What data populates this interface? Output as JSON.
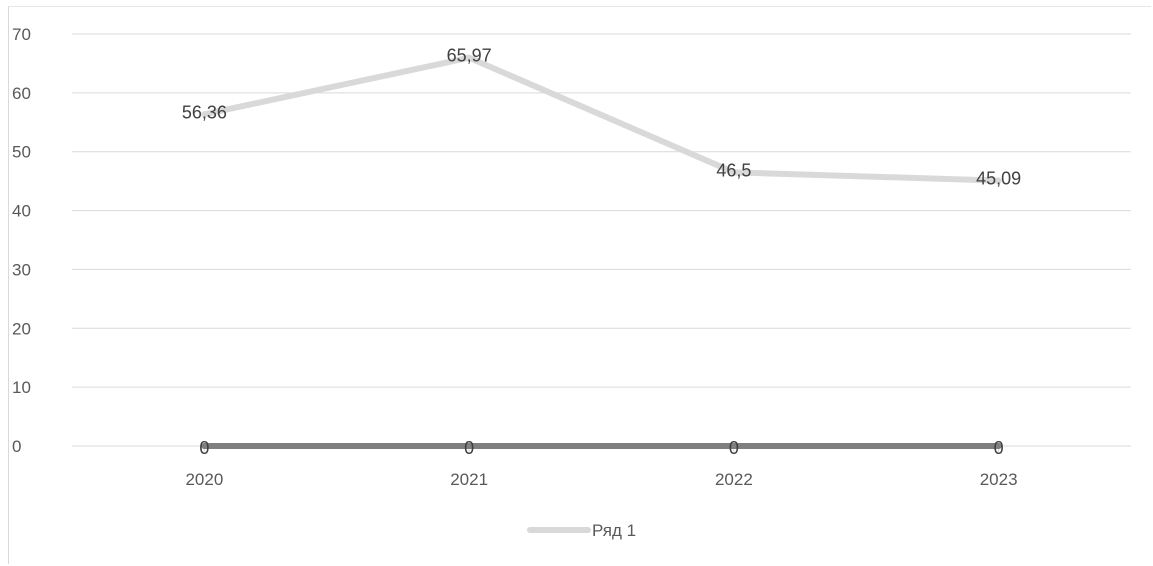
{
  "chart_data": {
    "type": "line",
    "categories": [
      "2020",
      "2021",
      "2022",
      "2023"
    ],
    "series": [
      {
        "name": "Ряд 1",
        "values": [
          56.36,
          65.97,
          46.5,
          45.09
        ],
        "labels": [
          "56,36",
          "65,97",
          "46,5",
          "45,09"
        ],
        "color": "#d9d9d9"
      },
      {
        "values": [
          0,
          0,
          0,
          0
        ],
        "labels": [
          "0",
          "0",
          "0",
          "0"
        ],
        "color": "#7f7f7f"
      }
    ],
    "yticks": [
      "0",
      "10",
      "20",
      "30",
      "40",
      "50",
      "60",
      "70"
    ],
    "ylim": [
      0,
      70
    ],
    "grid": true,
    "gridColor": "#d9d9d9",
    "legend": {
      "position": "bottom",
      "entries": [
        "Ряд 1"
      ]
    }
  }
}
